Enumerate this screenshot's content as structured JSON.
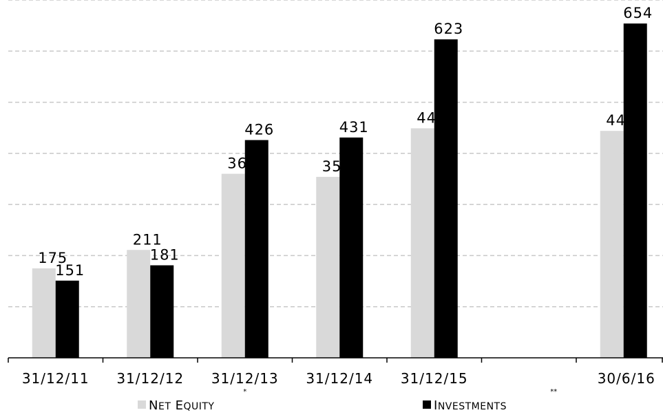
{
  "chart_data": {
    "type": "bar",
    "categories": [
      "31/12/11",
      "31/12/12",
      "31/12/13",
      "31/12/14",
      "31/12/15",
      "",
      "30/6/16"
    ],
    "category_marks": [
      "",
      "",
      "*",
      "",
      "",
      "**",
      ""
    ],
    "series": [
      {
        "name": "Net equity",
        "values": [
          175,
          211,
          360,
          354,
          449,
          null,
          444
        ]
      },
      {
        "name": "Investments",
        "values": [
          151,
          181,
          426,
          431,
          623,
          null,
          654
        ]
      }
    ],
    "title": "",
    "xlabel": "",
    "ylabel": "",
    "ylim": [
      0,
      700
    ],
    "grid": true,
    "legend_position": "bottom",
    "colors": {
      "Net equity": "#d9d9d9",
      "Investments": "#000000",
      "grid": "#c8c8c8",
      "axis": "#000000"
    }
  }
}
